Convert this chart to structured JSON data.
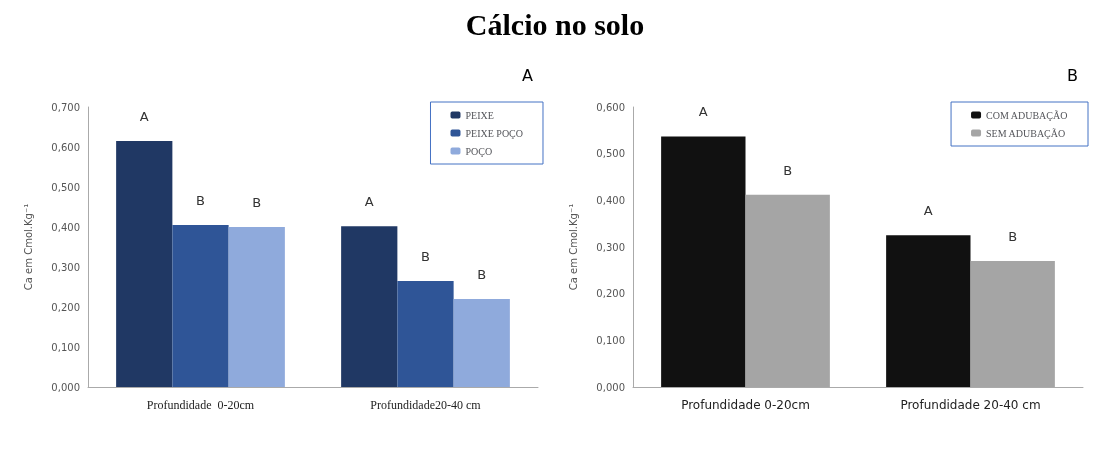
{
  "chart_data": [
    {
      "type": "bar",
      "title": "Cálcio no solo",
      "subtitle": "A",
      "ylabel": "Ca em Cmol.Kg⁻¹",
      "categories": [
        "Profundidade  0-20cm",
        "Profundidade20-40 cm"
      ],
      "series": [
        {
          "name": "PEIXE",
          "color": "#203864",
          "values": [
            0.615,
            0.402
          ],
          "value_labels": [
            "A",
            "A"
          ]
        },
        {
          "name": "PEIXE POÇO",
          "color": "#2f5597",
          "values": [
            0.405,
            0.265
          ],
          "value_labels": [
            "B",
            "B"
          ]
        },
        {
          "name": "POÇO",
          "color": "#8faadc",
          "values": [
            0.4,
            0.22
          ],
          "value_labels": [
            "B",
            "B"
          ]
        }
      ],
      "ylim": [
        0,
        0.7
      ],
      "yticks": [
        {
          "value": 0,
          "label": "0,000"
        },
        {
          "value": 0.1,
          "label": "0,100"
        },
        {
          "value": 0.2,
          "label": "0,200"
        },
        {
          "value": 0.3,
          "label": "0,300"
        },
        {
          "value": 0.4,
          "label": "0,400"
        },
        {
          "value": 0.5,
          "label": "0,500"
        },
        {
          "value": 0.6,
          "label": "0,600"
        },
        {
          "value": 0.7,
          "label": "0,700"
        }
      ],
      "grid": false,
      "legend": "top right"
    },
    {
      "type": "bar",
      "subtitle": "B",
      "ylabel": "Ca em Cmol.Kg⁻¹",
      "categories": [
        "Profundidade 0-20cm",
        "Profundidade 20-40 cm"
      ],
      "series": [
        {
          "name": "COM ADUBAÇÃO",
          "color": "#111111",
          "values": [
            0.537,
            0.325
          ],
          "value_labels": [
            "A",
            "A"
          ]
        },
        {
          "name": "SEM ADUBAÇÃO",
          "color": "#a5a5a5",
          "values": [
            0.412,
            0.27
          ],
          "value_labels": [
            "B",
            "B"
          ]
        }
      ],
      "ylim": [
        0,
        0.6
      ],
      "yticks": [
        {
          "value": 0,
          "label": "0,000"
        },
        {
          "value": 0.1,
          "label": "0,100"
        },
        {
          "value": 0.2,
          "label": "0,200"
        },
        {
          "value": 0.3,
          "label": "0,300"
        },
        {
          "value": 0.4,
          "label": "0,400"
        },
        {
          "value": 0.5,
          "label": "0,500"
        },
        {
          "value": 0.6,
          "label": "0,600"
        }
      ],
      "grid": false,
      "legend": "top right"
    }
  ]
}
